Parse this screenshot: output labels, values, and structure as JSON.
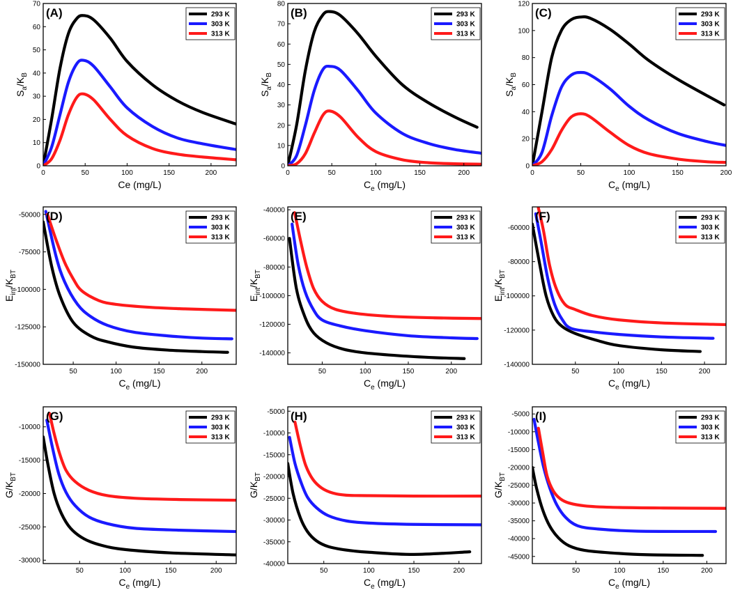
{
  "colors": {
    "293 K": "#000000",
    "303 K": "#1a1aff",
    "313 K": "#ff1a1a"
  },
  "chart_data": [
    {
      "panel": "(A)",
      "type": "line",
      "ylabel": "S_a/K_B",
      "xlabel": "Ce (mg/L)",
      "xlabel_sub": false,
      "xlim": [
        0,
        230
      ],
      "ylim": [
        0,
        70
      ],
      "xticks": [
        "0",
        "50",
        "100",
        "150",
        "200"
      ],
      "xtick_values": [
        0,
        50,
        100,
        150,
        200
      ],
      "yticks": [
        "0",
        "10",
        "20",
        "30",
        "40",
        "50",
        "60",
        "70"
      ],
      "ytick_values": [
        0,
        10,
        20,
        30,
        40,
        50,
        60,
        70
      ],
      "series": [
        {
          "name": "293 K",
          "x": [
            0,
            10,
            20,
            30,
            40,
            48,
            60,
            80,
            100,
            130,
            160,
            190,
            230
          ],
          "y": [
            0,
            20,
            42,
            57,
            63.5,
            64.8,
            63,
            55,
            45,
            35,
            28,
            23,
            18
          ]
        },
        {
          "name": "303 K",
          "x": [
            0,
            10,
            20,
            30,
            40,
            48,
            60,
            80,
            100,
            130,
            160,
            190,
            230
          ],
          "y": [
            0,
            8,
            22,
            36,
            44,
            45.5,
            43,
            34,
            25,
            17,
            12,
            9.5,
            7
          ]
        },
        {
          "name": "313 K",
          "x": [
            0,
            10,
            20,
            30,
            40,
            48,
            60,
            80,
            100,
            130,
            160,
            190,
            230
          ],
          "y": [
            0,
            3,
            11,
            22,
            29.5,
            31,
            28.5,
            20,
            13,
            7.5,
            5,
            3.8,
            2.6
          ]
        }
      ]
    },
    {
      "panel": "(B)",
      "type": "line",
      "ylabel": "S_a/K_B",
      "xlabel": "C_e (mg/L)",
      "xlabel_sub": true,
      "xlim": [
        0,
        220
      ],
      "ylim": [
        0,
        80
      ],
      "xticks": [
        "0",
        "50",
        "100",
        "150",
        "200"
      ],
      "xtick_values": [
        0,
        50,
        100,
        150,
        200
      ],
      "yticks": [
        "0",
        "10",
        "20",
        "30",
        "40",
        "50",
        "60",
        "70",
        "80"
      ],
      "ytick_values": [
        0,
        10,
        20,
        30,
        40,
        50,
        60,
        70,
        80
      ],
      "series": [
        {
          "name": "293 K",
          "x": [
            0,
            10,
            20,
            30,
            40,
            48,
            60,
            80,
            100,
            130,
            160,
            190,
            215
          ],
          "y": [
            0,
            20,
            47,
            66,
            74.5,
            76,
            74,
            65,
            54,
            40,
            31,
            24,
            19
          ]
        },
        {
          "name": "303 K",
          "x": [
            0,
            10,
            20,
            30,
            40,
            48,
            60,
            80,
            100,
            130,
            160,
            190,
            220
          ],
          "y": [
            0,
            5,
            20,
            37,
            47.5,
            49,
            47,
            37,
            26,
            16,
            11,
            8,
            6.2
          ]
        },
        {
          "name": "313 K",
          "x": [
            0,
            10,
            20,
            30,
            40,
            48,
            60,
            80,
            100,
            130,
            160,
            190,
            220
          ],
          "y": [
            0,
            1,
            6,
            16,
            25,
            27,
            24,
            14,
            7,
            3,
            1.5,
            1,
            0.8
          ]
        }
      ]
    },
    {
      "panel": "(C)",
      "type": "line",
      "ylabel": "S_a/K_B",
      "xlabel": "C_e (mg/L)",
      "xlabel_sub": true,
      "xlim": [
        0,
        200
      ],
      "ylim": [
        0,
        120
      ],
      "xticks": [
        "0",
        "50",
        "100",
        "150",
        "200"
      ],
      "xtick_values": [
        0,
        50,
        100,
        150,
        200
      ],
      "yticks": [
        "0",
        "20",
        "40",
        "60",
        "80",
        "100",
        "120"
      ],
      "ytick_values": [
        0,
        20,
        40,
        60,
        80,
        100,
        120
      ],
      "series": [
        {
          "name": "293 K",
          "x": [
            0,
            10,
            20,
            30,
            40,
            50,
            60,
            80,
            100,
            120,
            150,
            180,
            198
          ],
          "y": [
            0,
            40,
            80,
            100,
            108,
            110,
            109,
            101,
            90,
            78,
            64,
            52,
            45
          ]
        },
        {
          "name": "303 K",
          "x": [
            0,
            10,
            20,
            30,
            40,
            50,
            60,
            80,
            100,
            120,
            150,
            180,
            200
          ],
          "y": [
            0,
            10,
            37,
            58,
            67,
            69,
            67,
            57,
            44,
            34,
            24,
            18,
            15
          ]
        },
        {
          "name": "313 K",
          "x": [
            0,
            10,
            20,
            30,
            40,
            50,
            60,
            80,
            100,
            120,
            150,
            180,
            200
          ],
          "y": [
            0,
            3,
            12,
            26,
            36,
            38.5,
            36,
            25,
            15,
            9,
            5,
            3,
            2.5
          ]
        }
      ]
    },
    {
      "panel": "(D)",
      "type": "line",
      "ylabel": "E_int/K_BT",
      "xlabel": "C_e (mg/L)",
      "xlabel_sub": true,
      "xlim": [
        15,
        240
      ],
      "ylim": [
        -150000,
        -45000
      ],
      "xticks": [
        "50",
        "100",
        "150",
        "200"
      ],
      "xtick_values": [
        50,
        100,
        150,
        200
      ],
      "yticks": [
        "-50000",
        "-75000",
        "-100000",
        "-125000",
        "-150000"
      ],
      "ytick_values": [
        -50000,
        -75000,
        -100000,
        -125000,
        -150000
      ],
      "series": [
        {
          "name": "293 K",
          "x": [
            15,
            25,
            35,
            50,
            70,
            90,
            120,
            160,
            200,
            230
          ],
          "y": [
            -55000,
            -85000,
            -105000,
            -122000,
            -131000,
            -135000,
            -138500,
            -140500,
            -141500,
            -142000
          ]
        },
        {
          "name": "303 K",
          "x": [
            18,
            30,
            40,
            55,
            70,
            90,
            120,
            160,
            200,
            235
          ],
          "y": [
            -48000,
            -78000,
            -95000,
            -110000,
            -118000,
            -124000,
            -128500,
            -131000,
            -132500,
            -133000
          ]
        },
        {
          "name": "313 K",
          "x": [
            20,
            30,
            40,
            50,
            60,
            80,
            100,
            140,
            180,
            240
          ],
          "y": [
            -50000,
            -67000,
            -82000,
            -93000,
            -101000,
            -107500,
            -110000,
            -112000,
            -113000,
            -114000
          ]
        }
      ]
    },
    {
      "panel": "(E)",
      "type": "line",
      "ylabel": "E_int/K_BT",
      "xlabel": "C_e (mg/L)",
      "xlabel_sub": true,
      "xlim": [
        10,
        235
      ],
      "ylim": [
        -148000,
        -38000
      ],
      "xticks": [
        "50",
        "100",
        "150",
        "200"
      ],
      "xtick_values": [
        50,
        100,
        150,
        200
      ],
      "yticks": [
        "-40000",
        "-60000",
        "-80000",
        "-100000",
        "-120000",
        "-140000"
      ],
      "ytick_values": [
        -40000,
        -60000,
        -80000,
        -100000,
        -120000,
        -140000
      ],
      "series": [
        {
          "name": "293 K",
          "x": [
            12,
            20,
            30,
            40,
            55,
            75,
            100,
            140,
            180,
            215
          ],
          "y": [
            -60000,
            -95000,
            -115000,
            -126000,
            -133000,
            -137500,
            -140000,
            -142000,
            -143300,
            -144000
          ]
        },
        {
          "name": "303 K",
          "x": [
            15,
            22,
            30,
            40,
            50,
            70,
            100,
            150,
            200,
            230
          ],
          "y": [
            -50000,
            -78000,
            -97000,
            -110000,
            -117000,
            -121000,
            -124500,
            -128000,
            -129500,
            -130000
          ]
        },
        {
          "name": "313 K",
          "x": [
            18,
            25,
            32,
            40,
            50,
            65,
            90,
            130,
            180,
            235
          ],
          "y": [
            -42000,
            -62000,
            -80000,
            -95000,
            -104000,
            -109500,
            -112500,
            -114500,
            -115500,
            -116000
          ]
        }
      ]
    },
    {
      "panel": "(F)",
      "type": "line",
      "ylabel": "E_int/K_BT",
      "xlabel": "C_e (mg/L)",
      "xlabel_sub": true,
      "xlim": [
        0,
        225
      ],
      "ylim": [
        -140000,
        -48000
      ],
      "xticks": [
        "50",
        "100",
        "150",
        "200"
      ],
      "xtick_values": [
        50,
        100,
        150,
        200
      ],
      "yticks": [
        "-60000",
        "-80000",
        "-100000",
        "-120000",
        "-140000"
      ],
      "ytick_values": [
        -60000,
        -80000,
        -100000,
        -120000,
        -140000
      ],
      "series": [
        {
          "name": "293 K",
          "x": [
            0,
            8,
            16,
            25,
            35,
            50,
            75,
            100,
            150,
            195
          ],
          "y": [
            -58000,
            -80000,
            -100000,
            -112000,
            -118000,
            -122000,
            -126000,
            -129000,
            -131500,
            -132500
          ]
        },
        {
          "name": "303 K",
          "x": [
            4,
            10,
            18,
            26,
            35,
            45,
            70,
            100,
            150,
            210
          ],
          "y": [
            -52000,
            -68000,
            -90000,
            -105000,
            -114000,
            -119000,
            -121000,
            -122500,
            -124000,
            -124800
          ]
        },
        {
          "name": "313 K",
          "x": [
            7,
            13,
            20,
            28,
            38,
            50,
            70,
            100,
            150,
            225
          ],
          "y": [
            -48500,
            -62000,
            -82000,
            -96000,
            -105000,
            -108000,
            -111500,
            -114000,
            -115800,
            -116800
          ]
        }
      ]
    },
    {
      "panel": "(G)",
      "type": "line",
      "ylabel": "G/K_BT",
      "xlabel": "C_e (mg/L)",
      "xlabel_sub": true,
      "xlim": [
        10,
        222
      ],
      "ylim": [
        -30500,
        -7000
      ],
      "xticks": [
        "50",
        "100",
        "150",
        "200"
      ],
      "xtick_values": [
        50,
        100,
        150,
        200
      ],
      "yticks": [
        "-10000",
        "-15000",
        "-20000",
        "-25000",
        "-30000"
      ],
      "ytick_values": [
        -10000,
        -15000,
        -20000,
        -25000,
        -30000
      ],
      "series": [
        {
          "name": "293 K",
          "x": [
            10,
            15,
            22,
            30,
            40,
            55,
            75,
            100,
            150,
            222
          ],
          "y": [
            -11500,
            -15500,
            -20000,
            -23000,
            -25200,
            -26800,
            -27800,
            -28400,
            -28900,
            -29200
          ]
        },
        {
          "name": "303 K",
          "x": [
            14,
            20,
            27,
            35,
            45,
            60,
            80,
            110,
            160,
            222
          ],
          "y": [
            -9000,
            -13000,
            -17000,
            -19800,
            -21800,
            -23500,
            -24500,
            -25200,
            -25500,
            -25700
          ]
        },
        {
          "name": "313 K",
          "x": [
            17,
            22,
            28,
            35,
            45,
            60,
            80,
            110,
            160,
            222
          ],
          "y": [
            -8000,
            -11000,
            -14000,
            -16500,
            -18200,
            -19500,
            -20300,
            -20700,
            -20900,
            -21000
          ]
        }
      ]
    },
    {
      "panel": "(H)",
      "type": "line",
      "ylabel": "G/K_BT",
      "xlabel": "C_e (mg/L)",
      "xlabel_sub": true,
      "xlim": [
        10,
        225
      ],
      "ylim": [
        -40000,
        -4000
      ],
      "xticks": [
        "50",
        "100",
        "150",
        "200"
      ],
      "xtick_values": [
        50,
        100,
        150,
        200
      ],
      "yticks": [
        "-5000",
        "-10000",
        "-15000",
        "-20000",
        "-25000",
        "-30000",
        "-35000",
        "-40000"
      ],
      "ytick_values": [
        -5000,
        -10000,
        -15000,
        -20000,
        -25000,
        -30000,
        -35000,
        -40000
      ],
      "series": [
        {
          "name": "293 K",
          "x": [
            10,
            16,
            24,
            32,
            42,
            55,
            75,
            100,
            150,
            212
          ],
          "y": [
            -17000,
            -24000,
            -29500,
            -32700,
            -34800,
            -36100,
            -36900,
            -37400,
            -37900,
            -37300
          ]
        },
        {
          "name": "303 K",
          "x": [
            12,
            18,
            25,
            32,
            42,
            55,
            75,
            100,
            150,
            225
          ],
          "y": [
            -11000,
            -17000,
            -21500,
            -24800,
            -27200,
            -29000,
            -30200,
            -30700,
            -31000,
            -31100
          ]
        },
        {
          "name": "313 K",
          "x": [
            18,
            24,
            30,
            38,
            48,
            60,
            75,
            100,
            150,
            225
          ],
          "y": [
            -7500,
            -13000,
            -17500,
            -20700,
            -22700,
            -23800,
            -24300,
            -24400,
            -24500,
            -24500
          ]
        }
      ]
    },
    {
      "panel": "(I)",
      "type": "line",
      "ylabel": "G/K_BT",
      "xlabel": "C_e (mg/L)",
      "xlabel_sub": true,
      "xlim": [
        0,
        222
      ],
      "ylim": [
        -47000,
        -3000
      ],
      "xticks": [
        "50",
        "100",
        "150",
        "200"
      ],
      "xtick_values": [
        50,
        100,
        150,
        200
      ],
      "yticks": [
        "-5000",
        "-10000",
        "-15000",
        "-20000",
        "-25000",
        "-30000",
        "-35000",
        "-40000",
        "-45000"
      ],
      "ytick_values": [
        -5000,
        -10000,
        -15000,
        -20000,
        -25000,
        -30000,
        -35000,
        -40000,
        -45000
      ],
      "series": [
        {
          "name": "293 K",
          "x": [
            0,
            5,
            12,
            20,
            30,
            42,
            60,
            90,
            130,
            195
          ],
          "y": [
            -20000,
            -26000,
            -32000,
            -36500,
            -39800,
            -42000,
            -43300,
            -44000,
            -44500,
            -44700
          ]
        },
        {
          "name": "303 K",
          "x": [
            2,
            7,
            13,
            20,
            28,
            38,
            52,
            75,
            120,
            210
          ],
          "y": [
            -6500,
            -13000,
            -20000,
            -25800,
            -30500,
            -34000,
            -36400,
            -37300,
            -37900,
            -38000
          ]
        },
        {
          "name": "313 K",
          "x": [
            7,
            12,
            17,
            24,
            32,
            42,
            60,
            90,
            150,
            222
          ],
          "y": [
            -9000,
            -16000,
            -22500,
            -26600,
            -28800,
            -30000,
            -30800,
            -31200,
            -31400,
            -31500
          ]
        }
      ]
    }
  ]
}
